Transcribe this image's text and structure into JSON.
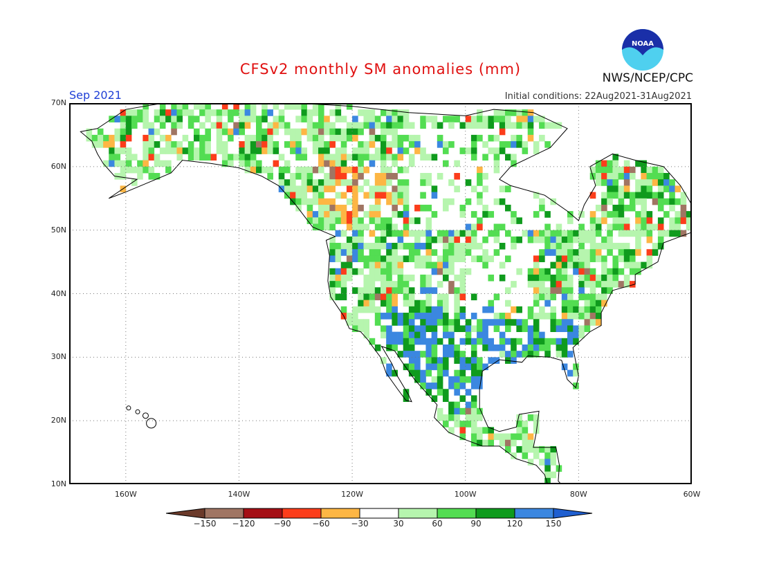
{
  "header": {
    "title": "CFSv2 monthly SM anomalies (mm)",
    "month": "Sep 2021",
    "initial_conditions": "Initial conditions: 22Aug2021-31Aug2021",
    "agency": "NWS/NCEP/CPC",
    "logo_text": "NOAA"
  },
  "map": {
    "region": "North America",
    "variable": "soil moisture anomaly",
    "lat_ticks": [
      "70N",
      "60N",
      "50N",
      "40N",
      "30N",
      "20N",
      "10N"
    ],
    "lon_ticks": [
      "160W",
      "140W",
      "120W",
      "100W",
      "80W",
      "60W"
    ],
    "grid": true
  },
  "legend": {
    "labels": [
      "−150",
      "−120",
      "−90",
      "−60",
      "−30",
      "30",
      "60",
      "90",
      "120",
      "150"
    ],
    "colors": [
      "#6b3a2a",
      "#a07563",
      "#a50f15",
      "#fc3d1b",
      "#fdb644",
      "#ffffff",
      "#b6f5ae",
      "#53dd52",
      "#0f9b1d",
      "#3b87e0",
      "#1f5fd0"
    ]
  }
}
